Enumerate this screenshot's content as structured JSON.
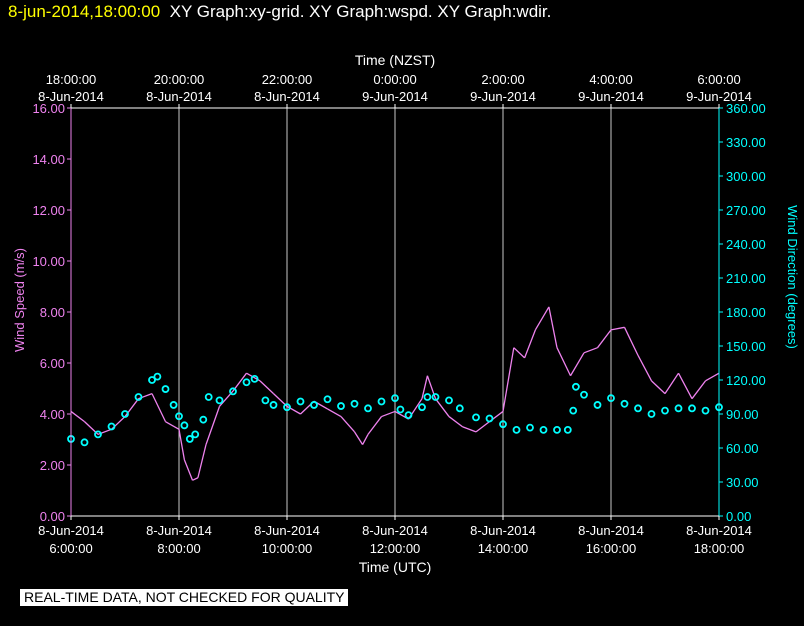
{
  "header": {
    "timestamp": "8-jun-2014,18:00:00",
    "graph_titles": "XY Graph:xy-grid.  XY Graph:wspd.  XY Graph:wdir."
  },
  "footer": {
    "note": "REAL-TIME DATA, NOT CHECKED FOR QUALITY"
  },
  "colors": {
    "speed": "#ee82ee",
    "direction": "#00ffff",
    "grid": "#c8c8c8",
    "axis": "#ffffff"
  },
  "chart_data": {
    "type": "line",
    "x_label_bottom": "Time (UTC)",
    "x_label_top": "Time (NZST)",
    "y_label_left": "Wind Speed (m/s)",
    "y_label_right": "Wind Direction (degrees)",
    "x_range_hours": [
      6,
      18
    ],
    "bottom_ticks": [
      {
        "hour": 6,
        "date": "8-Jun-2014",
        "time": "6:00:00"
      },
      {
        "hour": 8,
        "date": "8-Jun-2014",
        "time": "8:00:00"
      },
      {
        "hour": 10,
        "date": "8-Jun-2014",
        "time": "10:00:00"
      },
      {
        "hour": 12,
        "date": "8-Jun-2014",
        "time": "12:00:00"
      },
      {
        "hour": 14,
        "date": "8-Jun-2014",
        "time": "14:00:00"
      },
      {
        "hour": 16,
        "date": "8-Jun-2014",
        "time": "16:00:00"
      },
      {
        "hour": 18,
        "date": "8-Jun-2014",
        "time": "18:00:00"
      }
    ],
    "top_ticks": [
      {
        "hour": 6,
        "time": "18:00:00",
        "date": "8-Jun-2014"
      },
      {
        "hour": 8,
        "time": "20:00:00",
        "date": "8-Jun-2014"
      },
      {
        "hour": 10,
        "time": "22:00:00",
        "date": "8-Jun-2014"
      },
      {
        "hour": 12,
        "time": "0:00:00",
        "date": "9-Jun-2014"
      },
      {
        "hour": 14,
        "time": "2:00:00",
        "date": "9-Jun-2014"
      },
      {
        "hour": 16,
        "time": "4:00:00",
        "date": "9-Jun-2014"
      },
      {
        "hour": 18,
        "time": "6:00:00",
        "date": "9-Jun-2014"
      }
    ],
    "y_left_range": [
      0,
      16
    ],
    "y_left_ticks": [
      "0.00",
      "2.00",
      "4.00",
      "6.00",
      "8.00",
      "10.00",
      "12.00",
      "14.00",
      "16.00"
    ],
    "y_right_range": [
      0,
      360
    ],
    "y_right_ticks": [
      "0.00",
      "30.00",
      "60.00",
      "90.00",
      "120.00",
      "150.00",
      "180.00",
      "210.00",
      "240.00",
      "270.00",
      "300.00",
      "330.00",
      "360.00"
    ],
    "grid": "vertical lines at each bottom tick",
    "series": [
      {
        "kind": "wind_speed",
        "axis": "left",
        "style": "line",
        "points": [
          [
            6.0,
            4.1
          ],
          [
            6.25,
            3.7
          ],
          [
            6.5,
            3.2
          ],
          [
            6.75,
            3.4
          ],
          [
            7.0,
            3.9
          ],
          [
            7.25,
            4.6
          ],
          [
            7.5,
            4.8
          ],
          [
            7.75,
            3.7
          ],
          [
            8.0,
            3.4
          ],
          [
            8.1,
            2.2
          ],
          [
            8.25,
            1.4
          ],
          [
            8.35,
            1.5
          ],
          [
            8.5,
            2.8
          ],
          [
            8.75,
            4.3
          ],
          [
            9.0,
            4.9
          ],
          [
            9.25,
            5.6
          ],
          [
            9.5,
            5.3
          ],
          [
            9.75,
            4.8
          ],
          [
            10.0,
            4.3
          ],
          [
            10.25,
            4.0
          ],
          [
            10.5,
            4.5
          ],
          [
            10.75,
            4.2
          ],
          [
            11.0,
            3.9
          ],
          [
            11.25,
            3.3
          ],
          [
            11.4,
            2.8
          ],
          [
            11.5,
            3.2
          ],
          [
            11.75,
            3.9
          ],
          [
            12.0,
            4.1
          ],
          [
            12.25,
            3.8
          ],
          [
            12.5,
            4.6
          ],
          [
            12.6,
            5.5
          ],
          [
            12.75,
            4.6
          ],
          [
            13.0,
            3.9
          ],
          [
            13.25,
            3.5
          ],
          [
            13.5,
            3.3
          ],
          [
            13.75,
            3.7
          ],
          [
            14.0,
            4.1
          ],
          [
            14.2,
            6.6
          ],
          [
            14.4,
            6.2
          ],
          [
            14.6,
            7.3
          ],
          [
            14.85,
            8.2
          ],
          [
            15.0,
            6.6
          ],
          [
            15.25,
            5.5
          ],
          [
            15.5,
            6.4
          ],
          [
            15.75,
            6.6
          ],
          [
            16.0,
            7.3
          ],
          [
            16.25,
            7.4
          ],
          [
            16.5,
            6.3
          ],
          [
            16.75,
            5.3
          ],
          [
            17.0,
            4.8
          ],
          [
            17.25,
            5.6
          ],
          [
            17.5,
            4.6
          ],
          [
            17.75,
            5.3
          ],
          [
            18.0,
            5.6
          ]
        ]
      },
      {
        "kind": "wind_direction",
        "axis": "right",
        "style": "circles",
        "points": [
          [
            6.0,
            68
          ],
          [
            6.25,
            65
          ],
          [
            6.5,
            72
          ],
          [
            6.75,
            79
          ],
          [
            7.0,
            90
          ],
          [
            7.25,
            105
          ],
          [
            7.5,
            120
          ],
          [
            7.6,
            123
          ],
          [
            7.75,
            112
          ],
          [
            7.9,
            98
          ],
          [
            8.0,
            88
          ],
          [
            8.1,
            80
          ],
          [
            8.2,
            68
          ],
          [
            8.3,
            72
          ],
          [
            8.45,
            85
          ],
          [
            8.55,
            105
          ],
          [
            8.75,
            102
          ],
          [
            9.0,
            110
          ],
          [
            9.25,
            118
          ],
          [
            9.4,
            121
          ],
          [
            9.6,
            102
          ],
          [
            9.75,
            98
          ],
          [
            10.0,
            96
          ],
          [
            10.25,
            101
          ],
          [
            10.5,
            98
          ],
          [
            10.75,
            103
          ],
          [
            11.0,
            97
          ],
          [
            11.25,
            99
          ],
          [
            11.5,
            95
          ],
          [
            11.75,
            101
          ],
          [
            12.0,
            104
          ],
          [
            12.1,
            94
          ],
          [
            12.25,
            89
          ],
          [
            12.5,
            96
          ],
          [
            12.6,
            105
          ],
          [
            12.75,
            105
          ],
          [
            13.0,
            102
          ],
          [
            13.2,
            95
          ],
          [
            13.5,
            87
          ],
          [
            13.75,
            86
          ],
          [
            14.0,
            81
          ],
          [
            14.25,
            76
          ],
          [
            14.5,
            78
          ],
          [
            14.75,
            76
          ],
          [
            15.0,
            76
          ],
          [
            15.2,
            76
          ],
          [
            15.3,
            93
          ],
          [
            15.35,
            114
          ],
          [
            15.5,
            107
          ],
          [
            15.75,
            98
          ],
          [
            16.0,
            104
          ],
          [
            16.25,
            99
          ],
          [
            16.5,
            95
          ],
          [
            16.75,
            90
          ],
          [
            17.0,
            93
          ],
          [
            17.25,
            95
          ],
          [
            17.5,
            95
          ],
          [
            17.75,
            93
          ],
          [
            18.0,
            96
          ]
        ]
      }
    ]
  }
}
